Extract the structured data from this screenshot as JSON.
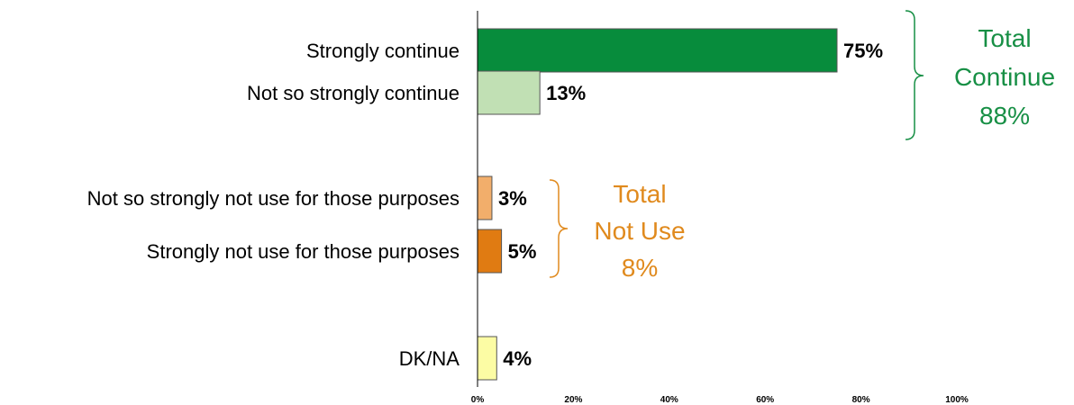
{
  "chart_data": {
    "type": "bar",
    "orientation": "horizontal",
    "categories": [
      "Strongly continue",
      "Not so strongly continue",
      "Not so strongly not use for those purposes",
      "Strongly not use for those purposes",
      "DK/NA"
    ],
    "values": [
      75,
      13,
      3,
      5,
      4
    ],
    "value_labels": [
      "75%",
      "13%",
      "3%",
      "5%",
      "4%"
    ],
    "bar_colors": [
      "#078c3c",
      "#c1e0b4",
      "#f2ae6b",
      "#e07b12",
      "#fcfca4"
    ],
    "xlim": [
      0,
      100
    ],
    "x_ticks": [
      0,
      20,
      40,
      60,
      80,
      100
    ],
    "x_tick_labels": [
      "0%",
      "20%",
      "40%",
      "60%",
      "80%",
      "100%"
    ],
    "title": "",
    "xlabel": "",
    "ylabel": "",
    "grid": false,
    "annotations": [
      {
        "lines": [
          "Total",
          "Continue",
          "88%"
        ],
        "color": "#178f45",
        "bracket_spans_categories": [
          0,
          1
        ]
      },
      {
        "lines": [
          "Total",
          "Not Use",
          "8%"
        ],
        "color": "#e08a1e",
        "bracket_spans_categories": [
          2,
          3
        ]
      }
    ]
  }
}
